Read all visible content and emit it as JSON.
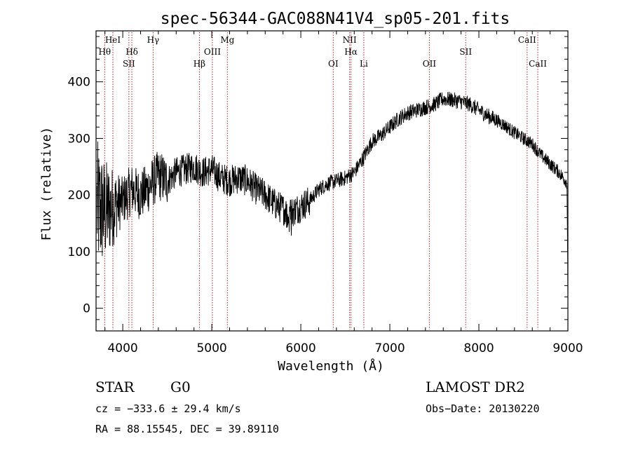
{
  "chart_data": {
    "type": "line",
    "title": "spec-56344-GAC088N41V4_sp05-201.fits",
    "xlabel": "Wavelength (Å)",
    "ylabel": "Flux (relative)",
    "xlim": [
      3700,
      9000
    ],
    "ylim": [
      -40,
      490
    ],
    "xticks": [
      4000,
      5000,
      6000,
      7000,
      8000,
      9000
    ],
    "yticks": [
      0,
      100,
      200,
      300,
      400
    ],
    "grid": false,
    "series": [
      {
        "name": "",
        "x": [
          3700,
          3800,
          3900,
          4000,
          4100,
          4200,
          4300,
          4400,
          4500,
          4600,
          4700,
          4800,
          4900,
          5000,
          5100,
          5200,
          5300,
          5400,
          5500,
          5600,
          5700,
          5800,
          5900,
          6000,
          6100,
          6200,
          6300,
          6400,
          6500,
          6600,
          6700,
          6800,
          6900,
          7000,
          7100,
          7200,
          7300,
          7400,
          7500,
          7600,
          7700,
          7800,
          7900,
          8000,
          8100,
          8200,
          8300,
          8400,
          8500,
          8600,
          8700,
          8800,
          8900,
          9000
        ],
        "y": [
          180,
          170,
          180,
          190,
          210,
          200,
          215,
          235,
          225,
          240,
          245,
          250,
          240,
          245,
          230,
          225,
          230,
          225,
          210,
          200,
          185,
          175,
          170,
          180,
          190,
          210,
          220,
          225,
          230,
          240,
          265,
          295,
          305,
          320,
          335,
          345,
          350,
          355,
          360,
          370,
          368,
          365,
          360,
          350,
          340,
          332,
          322,
          310,
          300,
          290,
          270,
          255,
          240,
          220
        ],
        "color": "#000000"
      }
    ],
    "lines": [
      {
        "wavelength": 3797,
        "label": "Hθ",
        "row": 2
      },
      {
        "wavelength": 3889,
        "label": "HeI",
        "row": 1
      },
      {
        "wavelength": 4069,
        "label": "SII",
        "row": 3
      },
      {
        "wavelength": 4102,
        "label": "Hδ",
        "row": 2
      },
      {
        "wavelength": 4341,
        "label": "Hγ",
        "row": 1
      },
      {
        "wavelength": 4861,
        "label": "Hβ",
        "row": 3
      },
      {
        "wavelength": 5007,
        "label": "OIII",
        "row": 2
      },
      {
        "wavelength": 5175,
        "label": "Mg",
        "row": 1
      },
      {
        "wavelength": 6364,
        "label": "OI",
        "row": 3
      },
      {
        "wavelength": 6548,
        "label": "NII",
        "row": 1
      },
      {
        "wavelength": 6563,
        "label": "Hα",
        "row": 2
      },
      {
        "wavelength": 6708,
        "label": "Li",
        "row": 3
      },
      {
        "wavelength": 7444,
        "label": "OII",
        "row": 3
      },
      {
        "wavelength": 7852,
        "label": "SII",
        "row": 2
      },
      {
        "wavelength": 8542,
        "label": "CaII",
        "row": 1
      },
      {
        "wavelength": 8662,
        "label": "CaII",
        "row": 3
      }
    ],
    "line_color": "#b22222"
  },
  "info": {
    "object_class": "STAR",
    "subclass": "G0",
    "survey": "LAMOST DR2",
    "cz": "cz = −333.6 ± 29.4 km/s",
    "obs_date": "Obs−Date: 20130220",
    "coords": "RA =  88.15545, DEC =  39.89110"
  }
}
